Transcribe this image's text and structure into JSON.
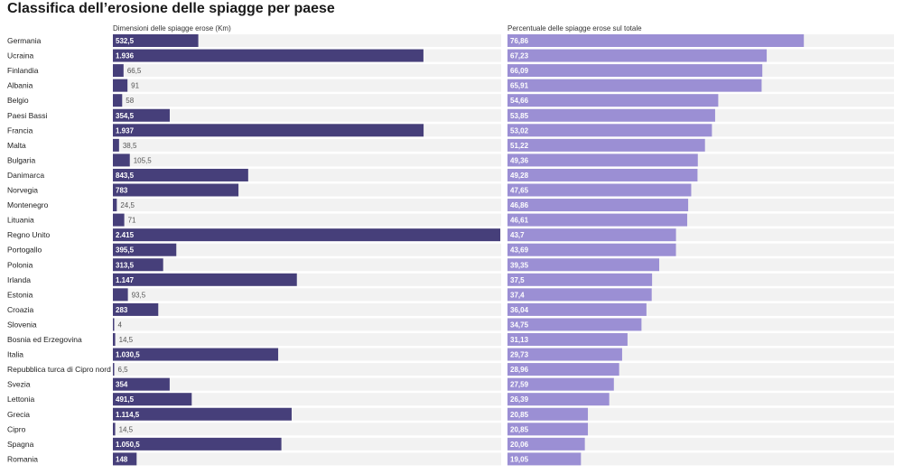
{
  "title": "Classifica dell’erosione delle spiagge per paese",
  "chart_data": [
    {
      "type": "bar",
      "orientation": "horizontal",
      "title": "Dimensioni delle spiagge erose (Km)",
      "xlim": [
        0,
        2415
      ],
      "color": "#463f7a",
      "categories": [
        "Germania",
        "Ucraina",
        "Finlandia",
        "Albania",
        "Belgio",
        "Paesi Bassi",
        "Francia",
        "Malta",
        "Bulgaria",
        "Danimarca",
        "Norvegia",
        "Montenegro",
        "Lituania",
        "Regno Unito",
        "Portogallo",
        "Polonia",
        "Irlanda",
        "Estonia",
        "Croazia",
        "Slovenia",
        "Bosnia ed Erzegovina",
        "Italia",
        "Repubblica turca di Cipro nord",
        "Svezia",
        "Lettonia",
        "Grecia",
        "Cipro",
        "Spagna",
        "Romania"
      ],
      "values": [
        532.5,
        1936,
        66.5,
        91,
        58,
        354.5,
        1937,
        38.5,
        105.5,
        843.5,
        783,
        24.5,
        71,
        2415,
        395.5,
        313.5,
        1147,
        93.5,
        283,
        4,
        14.5,
        1030.5,
        6.5,
        354,
        491.5,
        1114.5,
        14.5,
        1050.5,
        148
      ],
      "value_labels": [
        "532,5",
        "1.936",
        "66,5",
        "91",
        "58",
        "354,5",
        "1.937",
        "38,5",
        "105,5",
        "843,5",
        "783",
        "24,5",
        "71",
        "2.415",
        "395,5",
        "313,5",
        "1.147",
        "93,5",
        "283",
        "4",
        "14,5",
        "1.030,5",
        "6,5",
        "354",
        "491,5",
        "1.114,5",
        "14,5",
        "1.050,5",
        "148"
      ]
    },
    {
      "type": "bar",
      "orientation": "horizontal",
      "title": "Percentuale delle spiagge erose sul totale",
      "xlim": [
        0,
        100
      ],
      "color": "#9b8fd4",
      "categories": [
        "Germania",
        "Ucraina",
        "Finlandia",
        "Albania",
        "Belgio",
        "Paesi Bassi",
        "Francia",
        "Malta",
        "Bulgaria",
        "Danimarca",
        "Norvegia",
        "Montenegro",
        "Lituania",
        "Regno Unito",
        "Portogallo",
        "Polonia",
        "Irlanda",
        "Estonia",
        "Croazia",
        "Slovenia",
        "Bosnia ed Erzegovina",
        "Italia",
        "Repubblica turca di Cipro nord",
        "Svezia",
        "Lettonia",
        "Grecia",
        "Cipro",
        "Spagna",
        "Romania"
      ],
      "values": [
        76.86,
        67.23,
        66.09,
        65.91,
        54.66,
        53.85,
        53.02,
        51.22,
        49.36,
        49.28,
        47.65,
        46.86,
        46.61,
        43.7,
        43.69,
        39.35,
        37.5,
        37.4,
        36.04,
        34.75,
        31.13,
        29.73,
        28.96,
        27.59,
        26.39,
        20.85,
        20.85,
        20.06,
        19.05
      ],
      "value_labels": [
        "76,86",
        "67,23",
        "66,09",
        "65,91",
        "54,66",
        "53,85",
        "53,02",
        "51,22",
        "49,36",
        "49,28",
        "47,65",
        "46,86",
        "46,61",
        "43,7",
        "43,69",
        "39,35",
        "37,5",
        "37,4",
        "36,04",
        "34,75",
        "31,13",
        "29,73",
        "28,96",
        "27,59",
        "26,39",
        "20,85",
        "20,85",
        "20,06",
        "19,05"
      ]
    }
  ]
}
